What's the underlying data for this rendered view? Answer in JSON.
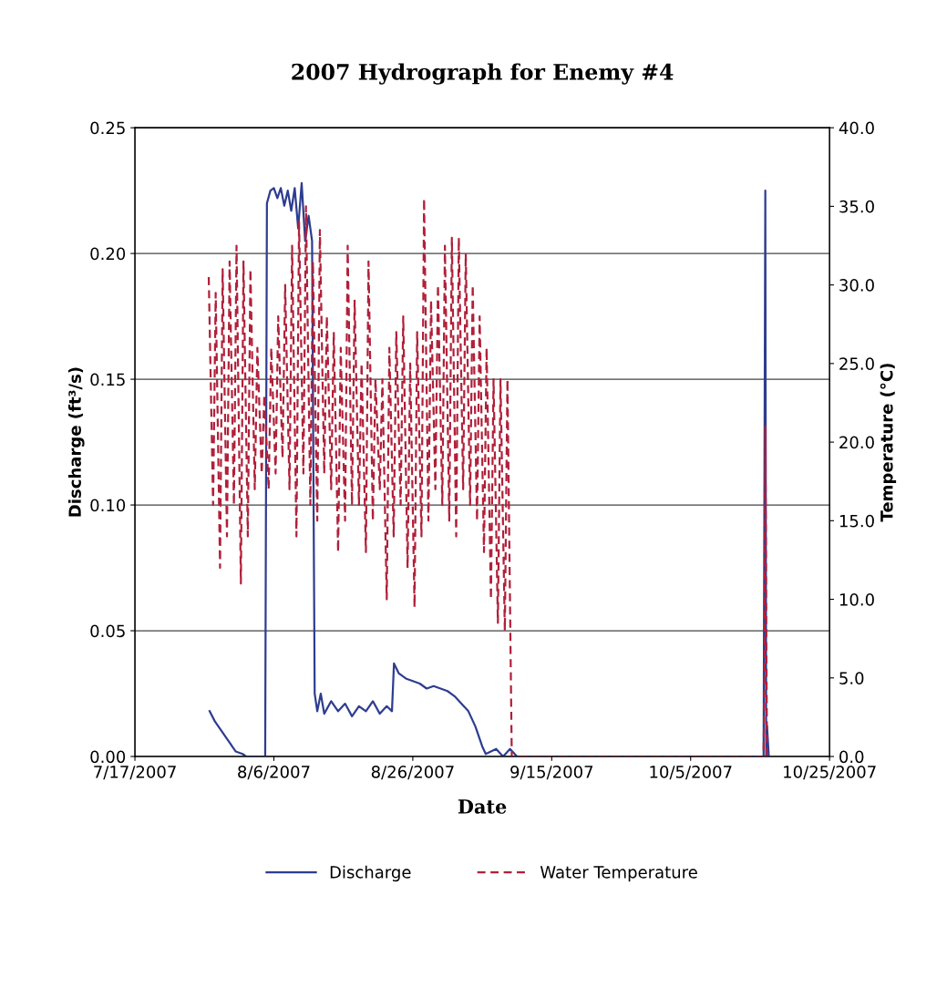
{
  "chart_data": {
    "type": "line",
    "title": "2007 Hydrograph for Enemy #4",
    "xlabel": "Date",
    "ylabel": "Discharge (ft³/s)",
    "y2label": "Temperature (°C)",
    "xlim": [
      "2007-07-17",
      "2007-10-25"
    ],
    "xticks": [
      {
        "value": "2007-07-17",
        "label": "7/17/2007"
      },
      {
        "value": "2007-08-06",
        "label": "8/6/2007"
      },
      {
        "value": "2007-08-26",
        "label": "8/26/2007"
      },
      {
        "value": "2007-09-15",
        "label": "9/15/2007"
      },
      {
        "value": "2007-10-05",
        "label": "10/5/2007"
      },
      {
        "value": "2007-10-25",
        "label": "10/25/2007"
      }
    ],
    "ylim": [
      0,
      0.25
    ],
    "yticks": [
      {
        "value": 0,
        "label": "0.00"
      },
      {
        "value": 0.05,
        "label": "0.05"
      },
      {
        "value": 0.1,
        "label": "0.10"
      },
      {
        "value": 0.15,
        "label": "0.15"
      },
      {
        "value": 0.2,
        "label": "0.20"
      },
      {
        "value": 0.25,
        "label": "0.25"
      }
    ],
    "y2lim": [
      0,
      40
    ],
    "y2ticks": [
      {
        "value": 0,
        "label": "0.0"
      },
      {
        "value": 5,
        "label": "5.0"
      },
      {
        "value": 10,
        "label": "10.0"
      },
      {
        "value": 15,
        "label": "15.0"
      },
      {
        "value": 20,
        "label": "20.0"
      },
      {
        "value": 25,
        "label": "25.0"
      },
      {
        "value": 30,
        "label": "30.0"
      },
      {
        "value": 35,
        "label": "35.0"
      },
      {
        "value": 40,
        "label": "40.0"
      }
    ],
    "grid": "y",
    "legend": "bottom",
    "series": [
      {
        "name": "Discharge",
        "color": "#2e3d8f",
        "line_style": "solid",
        "x": [
          "2007-07-27T18:00",
          "2007-07-28T12:00",
          "2007-07-29T12:00",
          "2007-07-30T12:00",
          "2007-07-31T12:00",
          "2007-08-01T12:00",
          "2007-08-02T00:00",
          "2007-08-04T18:00",
          "2007-08-05T00:00",
          "2007-08-05T12:00",
          "2007-08-06T00:00",
          "2007-08-06T12:00",
          "2007-08-07T00:00",
          "2007-08-07T12:00",
          "2007-08-08T00:00",
          "2007-08-08T12:00",
          "2007-08-09T00:00",
          "2007-08-09T12:00",
          "2007-08-10T00:00",
          "2007-08-10T12:00",
          "2007-08-11T00:00",
          "2007-08-11T12:00",
          "2007-08-11T21:00",
          "2007-08-12T06:00",
          "2007-08-12T18:00",
          "2007-08-13T06:00",
          "2007-08-14T06:00",
          "2007-08-15T06:00",
          "2007-08-16T06:00",
          "2007-08-17T06:00",
          "2007-08-18T06:00",
          "2007-08-19T06:00",
          "2007-08-20T06:00",
          "2007-08-21T06:00",
          "2007-08-22T06:00",
          "2007-08-23T00:00",
          "2007-08-23T07:00",
          "2007-08-24T00:00",
          "2007-08-25T00:00",
          "2007-08-26T00:00",
          "2007-08-27T00:00",
          "2007-08-28T00:00",
          "2007-08-29T00:00",
          "2007-08-30T00:00",
          "2007-08-31T00:00",
          "2007-09-01T00:00",
          "2007-09-02T00:00",
          "2007-09-03T00:00",
          "2007-09-04T00:00",
          "2007-09-05T00:00",
          "2007-09-05T12:00",
          "2007-09-07T00:00",
          "2007-09-08T00:00",
          "2007-09-09T00:00",
          "2007-09-10T00:00",
          "2007-10-15T12:00",
          "2007-10-15T18:00",
          "2007-10-15T21:00",
          "2007-10-16T00:00",
          "2007-10-16T06:00"
        ],
        "values": [
          0.018,
          0.014,
          0.01,
          0.006,
          0.002,
          0.001,
          0.0,
          0.0,
          0.22,
          0.225,
          0.226,
          0.222,
          0.226,
          0.219,
          0.225,
          0.217,
          0.226,
          0.21,
          0.228,
          0.205,
          0.215,
          0.205,
          0.025,
          0.018,
          0.025,
          0.017,
          0.022,
          0.018,
          0.021,
          0.016,
          0.02,
          0.018,
          0.022,
          0.017,
          0.02,
          0.018,
          0.037,
          0.033,
          0.031,
          0.03,
          0.029,
          0.027,
          0.028,
          0.027,
          0.026,
          0.024,
          0.021,
          0.018,
          0.012,
          0.004,
          0.001,
          0.003,
          0.0,
          0.003,
          0.0,
          0.0,
          0.225,
          0.0,
          0.012,
          0.0
        ]
      },
      {
        "name": "Water Temperature",
        "color": "#b0203a",
        "axis": "y2",
        "line_style": "dashed",
        "x": [
          "2007-07-27T15:00",
          "2007-07-28T06:00",
          "2007-07-28T15:00",
          "2007-07-29T06:00",
          "2007-07-29T15:00",
          "2007-07-30T06:00",
          "2007-07-30T15:00",
          "2007-07-31T06:00",
          "2007-07-31T15:00",
          "2007-08-01T06:00",
          "2007-08-01T15:00",
          "2007-08-02T06:00",
          "2007-08-02T15:00",
          "2007-08-03T06:00",
          "2007-08-03T15:00",
          "2007-08-04T06:00",
          "2007-08-04T15:00",
          "2007-08-05T06:00",
          "2007-08-05T15:00",
          "2007-08-06T06:00",
          "2007-08-06T15:00",
          "2007-08-07T06:00",
          "2007-08-07T15:00",
          "2007-08-08T06:00",
          "2007-08-08T15:00",
          "2007-08-09T06:00",
          "2007-08-09T15:00",
          "2007-08-10T06:00",
          "2007-08-10T15:00",
          "2007-08-11T06:00",
          "2007-08-11T15:00",
          "2007-08-12T06:00",
          "2007-08-12T15:00",
          "2007-08-13T06:00",
          "2007-08-13T15:00",
          "2007-08-14T06:00",
          "2007-08-14T15:00",
          "2007-08-15T06:00",
          "2007-08-15T15:00",
          "2007-08-16T06:00",
          "2007-08-16T15:00",
          "2007-08-17T06:00",
          "2007-08-17T15:00",
          "2007-08-18T06:00",
          "2007-08-18T15:00",
          "2007-08-19T06:00",
          "2007-08-19T15:00",
          "2007-08-20T06:00",
          "2007-08-20T15:00",
          "2007-08-21T06:00",
          "2007-08-21T15:00",
          "2007-08-22T06:00",
          "2007-08-22T15:00",
          "2007-08-23T06:00",
          "2007-08-23T15:00",
          "2007-08-24T06:00",
          "2007-08-24T15:00",
          "2007-08-25T06:00",
          "2007-08-25T15:00",
          "2007-08-26T06:00",
          "2007-08-26T15:00",
          "2007-08-27T06:00",
          "2007-08-27T15:00",
          "2007-08-28T06:00",
          "2007-08-28T15:00",
          "2007-08-29T06:00",
          "2007-08-29T15:00",
          "2007-08-30T06:00",
          "2007-08-30T15:00",
          "2007-08-31T06:00",
          "2007-08-31T15:00",
          "2007-09-01T06:00",
          "2007-09-01T15:00",
          "2007-09-02T06:00",
          "2007-09-02T15:00",
          "2007-09-03T06:00",
          "2007-09-03T15:00",
          "2007-09-04T06:00",
          "2007-09-04T15:00",
          "2007-09-05T06:00",
          "2007-09-05T15:00",
          "2007-09-06T06:00",
          "2007-09-06T15:00",
          "2007-09-07T06:00",
          "2007-09-07T15:00",
          "2007-09-08T06:00",
          "2007-09-08T15:00",
          "2007-09-09T06:00",
          "2007-09-09T12:00",
          "2007-10-15T12:00",
          "2007-10-15T15:00",
          "2007-10-15T18:00",
          "2007-10-15T21:00",
          "2007-10-16T00:00"
        ],
        "values": [
          30.5,
          16,
          29.5,
          12,
          31,
          14,
          31.5,
          16,
          32.5,
          11,
          31.5,
          14,
          31,
          17,
          26,
          18,
          23,
          17,
          26,
          18,
          28,
          19,
          30,
          17,
          32.5,
          14,
          34,
          18,
          35,
          16,
          31.5,
          15,
          33.5,
          18,
          28,
          17,
          27,
          13,
          26,
          15,
          32.5,
          16,
          29,
          16,
          25,
          13,
          31.5,
          15,
          24,
          17,
          24,
          10,
          26,
          14,
          27,
          16,
          28,
          12,
          25,
          9.5,
          27,
          14,
          35.5,
          15,
          29,
          17,
          30,
          16,
          32.5,
          15,
          33,
          14,
          33,
          17,
          32,
          16,
          30,
          15,
          28,
          13,
          26,
          10,
          24,
          8.5,
          24,
          8,
          24,
          0,
          0,
          0,
          5,
          21,
          9,
          0
        ]
      }
    ]
  }
}
